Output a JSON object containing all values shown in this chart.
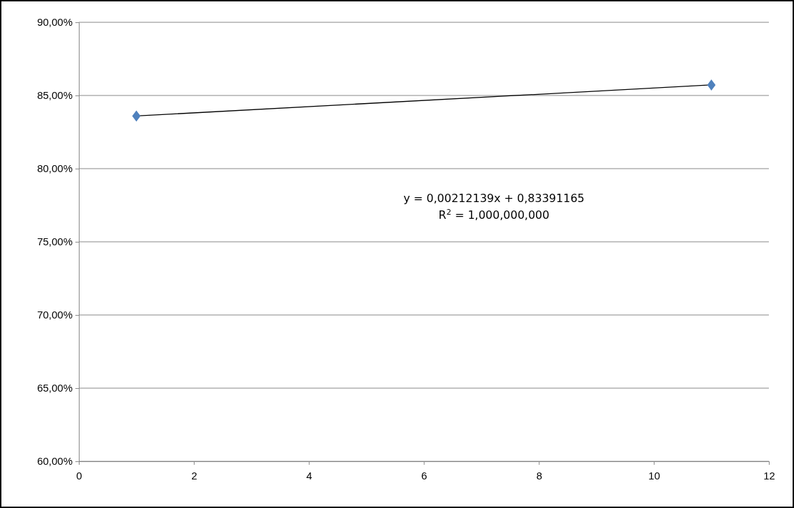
{
  "chart_data": {
    "type": "scatter",
    "xlim": [
      0,
      12
    ],
    "xticks": [
      0,
      2,
      4,
      6,
      8,
      10,
      12
    ],
    "ylim": [
      60,
      90
    ],
    "yticks": [
      {
        "value": 60,
        "label": "60,00%"
      },
      {
        "value": 65,
        "label": "65,00%"
      },
      {
        "value": 70,
        "label": "70,00%"
      },
      {
        "value": 75,
        "label": "75,00%"
      },
      {
        "value": 80,
        "label": "80,00%"
      },
      {
        "value": 85,
        "label": "85,00%"
      },
      {
        "value": 90,
        "label": "90,00%"
      }
    ],
    "grid": "y",
    "x": [
      1,
      11
    ],
    "series": [
      {
        "values": [
          83.6,
          85.72
        ],
        "color": "#4f81bd",
        "marker": "diamond"
      },
      {
        "type": "line",
        "values": [
          83.6,
          85.72
        ],
        "color": "#000000",
        "marker": "none",
        "line_style": "solid"
      }
    ],
    "annotations": [
      "y = 0,00212139x + 0,83391165",
      "R$^{2}$ = 1,000,000,000"
    ]
  }
}
